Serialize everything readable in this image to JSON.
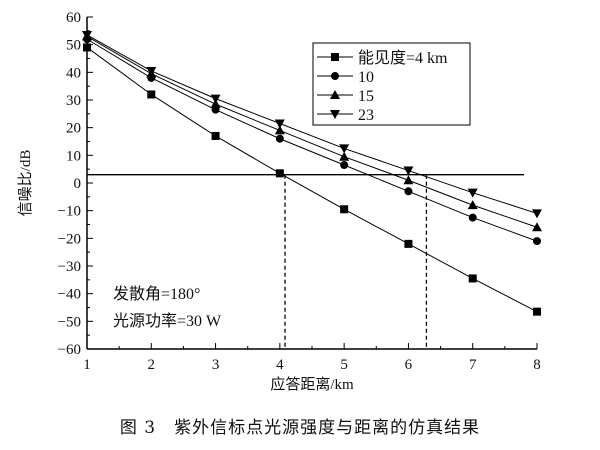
{
  "chart_data": {
    "type": "line",
    "xlabel": "应答距离/km",
    "ylabel": "信噪比/dB",
    "xlim": [
      1,
      8
    ],
    "ylim": [
      -60,
      60
    ],
    "xticks": [
      1,
      2,
      3,
      4,
      5,
      6,
      7,
      8
    ],
    "yticks": [
      60,
      50,
      40,
      30,
      20,
      10,
      0,
      -10,
      -20,
      -30,
      -40,
      -50,
      -60
    ],
    "x": [
      1,
      2,
      3,
      4,
      5,
      6,
      7,
      8
    ],
    "series": [
      {
        "name": "能见度=4 km",
        "marker": "square",
        "values": [
          49,
          32,
          17,
          3.5,
          -9.5,
          -22,
          -34.5,
          -46.5
        ]
      },
      {
        "name": "10",
        "marker": "circle",
        "values": [
          52,
          38,
          26.5,
          16,
          6.5,
          -3,
          -12.5,
          -21
        ]
      },
      {
        "name": "15",
        "marker": "triangle-up",
        "values": [
          53,
          39.5,
          28.5,
          19,
          9.5,
          1,
          -8,
          -16
        ]
      },
      {
        "name": "23",
        "marker": "triangle-down",
        "values": [
          53.5,
          40.5,
          30.5,
          21.5,
          12.5,
          4.5,
          -3.5,
          -11
        ]
      }
    ],
    "threshold": {
      "y": 3,
      "x_end": 7.8
    },
    "dashed_x": [
      4.08,
      6.28
    ],
    "legend_position": "top-right",
    "annotations": [
      "发散角=180°",
      "光源功率=30 W"
    ],
    "grid": false
  },
  "caption": "图 3　紫外信标点光源强度与距离的仿真结果"
}
